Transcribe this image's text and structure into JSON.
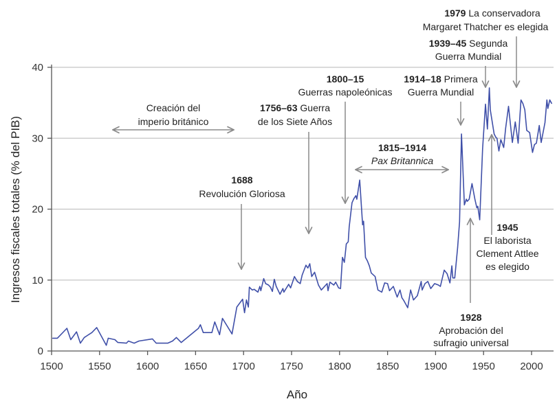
{
  "chart_data": {
    "type": "line",
    "title": "",
    "xlabel": "Año",
    "ylabel": "Ingresos fiscales totales (% del PIB)",
    "xlim": [
      1500,
      2022
    ],
    "ylim": [
      0,
      40
    ],
    "xticks": [
      1500,
      1550,
      1600,
      1650,
      1700,
      1750,
      1800,
      1850,
      1900,
      1950,
      2000
    ],
    "yticks": [
      0,
      10,
      20,
      30,
      40
    ],
    "grid": "horizontal",
    "line_color": "#3f4fa8",
    "x": [
      1501,
      1506,
      1516,
      1520,
      1526,
      1530,
      1534,
      1542,
      1547,
      1557,
      1559,
      1566,
      1569,
      1578,
      1580,
      1586,
      1591,
      1605,
      1609,
      1621,
      1626,
      1630,
      1635,
      1653,
      1655,
      1658,
      1667,
      1670,
      1675,
      1678,
      1688,
      1693,
      1699,
      1701,
      1703,
      1705,
      1706,
      1709,
      1711,
      1715,
      1717,
      1718,
      1721,
      1723,
      1726,
      1728,
      1730,
      1732,
      1734,
      1738,
      1741,
      1742,
      1747,
      1749,
      1753,
      1756,
      1759,
      1761,
      1765,
      1767,
      1769,
      1771,
      1774,
      1778,
      1781,
      1787,
      1788,
      1790,
      1794,
      1796,
      1799,
      1801,
      1803,
      1805,
      1807,
      1809,
      1810,
      1813,
      1815,
      1817,
      1818,
      1821,
      1824,
      1825,
      1827,
      1829,
      1831,
      1833,
      1837,
      1840,
      1844,
      1847,
      1850,
      1852,
      1856,
      1860,
      1863,
      1865,
      1867,
      1871,
      1874,
      1877,
      1881,
      1885,
      1886,
      1889,
      1892,
      1895,
      1899,
      1903,
      1905,
      1909,
      1912,
      1915,
      1917,
      1918,
      1920,
      1923,
      1925,
      1927,
      1930,
      1932,
      1933,
      1935,
      1938,
      1941,
      1943,
      1944,
      1946,
      1949,
      1951,
      1952,
      1954,
      1956,
      1957,
      1961,
      1963,
      1964,
      1966,
      1968,
      1971,
      1973,
      1976,
      1980,
      1983,
      1986,
      1989,
      1991,
      1993,
      1995,
      1998,
      2001,
      2003,
      2005,
      2008,
      2010,
      2014,
      2016,
      2017,
      2019,
      2021
    ],
    "y": [
      1.8,
      1.8,
      3.2,
      1.6,
      2.7,
      1.1,
      1.9,
      2.6,
      3.3,
      0.8,
      1.8,
      1.6,
      1.2,
      1.1,
      1.4,
      1.1,
      1.4,
      1.7,
      1.1,
      1.1,
      1.4,
      1.9,
      1.2,
      3.2,
      3.7,
      2.6,
      2.6,
      4.1,
      2.3,
      4.6,
      2.4,
      6.2,
      7.3,
      5.4,
      7.2,
      6.2,
      9.0,
      8.6,
      8.7,
      8.3,
      9.1,
      8.5,
      10.2,
      9.5,
      9.3,
      9.0,
      8.4,
      10.1,
      9.1,
      8.0,
      8.8,
      8.3,
      9.4,
      8.9,
      10.5,
      9.8,
      9.5,
      10.7,
      12.1,
      11.7,
      12.3,
      10.5,
      11.1,
      9.3,
      8.6,
      9.5,
      8.5,
      9.7,
      9.3,
      9.7,
      8.9,
      8.8,
      13.2,
      12.5,
      15.1,
      15.4,
      17.5,
      20.9,
      21.5,
      21.9,
      21.4,
      24.1,
      17.8,
      18.3,
      13.2,
      12.7,
      12.0,
      11.0,
      10.5,
      8.6,
      8.3,
      9.6,
      9.5,
      8.5,
      9.1,
      7.6,
      8.6,
      7.5,
      7.1,
      6.1,
      8.6,
      7.2,
      7.8,
      9.8,
      8.6,
      9.5,
      9.8,
      8.8,
      9.5,
      9.3,
      9.1,
      11.4,
      10.9,
      9.6,
      12.0,
      10.3,
      10.3,
      14.6,
      18.2,
      30.6,
      20.6,
      21.4,
      21.1,
      21.4,
      23.6,
      21.4,
      20.2,
      20.4,
      18.5,
      28.5,
      32.7,
      34.8,
      31.3,
      37.1,
      34.0,
      30.6,
      30.1,
      30.0,
      28.2,
      29.8,
      28.7,
      31.4,
      34.5,
      29.4,
      32.3,
      29.3,
      35.4,
      34.9,
      34.0,
      31.1,
      30.8,
      28.0,
      29.1,
      29.3,
      31.8,
      29.4,
      32.2,
      35.4,
      34.2,
      35.4,
      34.9
    ]
  },
  "annotations": {
    "empire": {
      "line1": "Creación del",
      "line2": "imperio británico"
    },
    "glorious": {
      "year": "1688",
      "line2": "Revolución Gloriosa"
    },
    "seven_years": {
      "year": "1756–63",
      "rest": " Guerra",
      "line2": "de los Siete Años"
    },
    "napoleonic": {
      "year": "1800–15",
      "line2": "Guerras napoleónicas"
    },
    "pax": {
      "year": "1815–1914",
      "line2": "Pax Britannica"
    },
    "ww1": {
      "year": "1914–18",
      "rest": " Primera",
      "line2": "Guerra Mundial"
    },
    "ww2": {
      "year": "1939–45",
      "rest": " Segunda",
      "line2": "Guerra Mundial"
    },
    "thatcher": {
      "year": "1979",
      "rest": " La conservadora",
      "line2": "Margaret Thatcher es elegida"
    },
    "attlee": {
      "year": "1945",
      "line2": "El laborista",
      "line3": "Clement Attlee",
      "line4": "es elegido"
    },
    "suffrage": {
      "year": "1928",
      "line2": "Aprobación del",
      "line3": "sufragio universal"
    }
  }
}
